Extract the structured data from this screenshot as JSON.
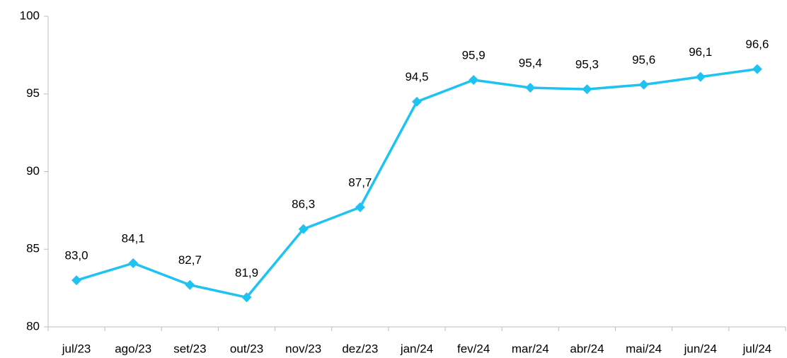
{
  "chart_data": {
    "type": "line",
    "categories": [
      "jul/23",
      "ago/23",
      "set/23",
      "out/23",
      "nov/23",
      "dez/23",
      "jan/24",
      "fev/24",
      "mar/24",
      "abr/24",
      "mai/24",
      "jun/24",
      "jul/24"
    ],
    "values": [
      83.0,
      84.1,
      82.7,
      81.9,
      86.3,
      87.7,
      94.5,
      95.9,
      95.4,
      95.3,
      95.6,
      96.1,
      96.6
    ],
    "value_labels": [
      "83,0",
      "84,1",
      "82,7",
      "81,9",
      "86,3",
      "87,7",
      "94,5",
      "95,9",
      "95,4",
      "95,3",
      "95,6",
      "96,1",
      "96,6"
    ],
    "color": "#1fc3f2",
    "ylim": [
      80,
      100
    ],
    "yticks": [
      80,
      85,
      90,
      95,
      100
    ],
    "grid": false
  }
}
